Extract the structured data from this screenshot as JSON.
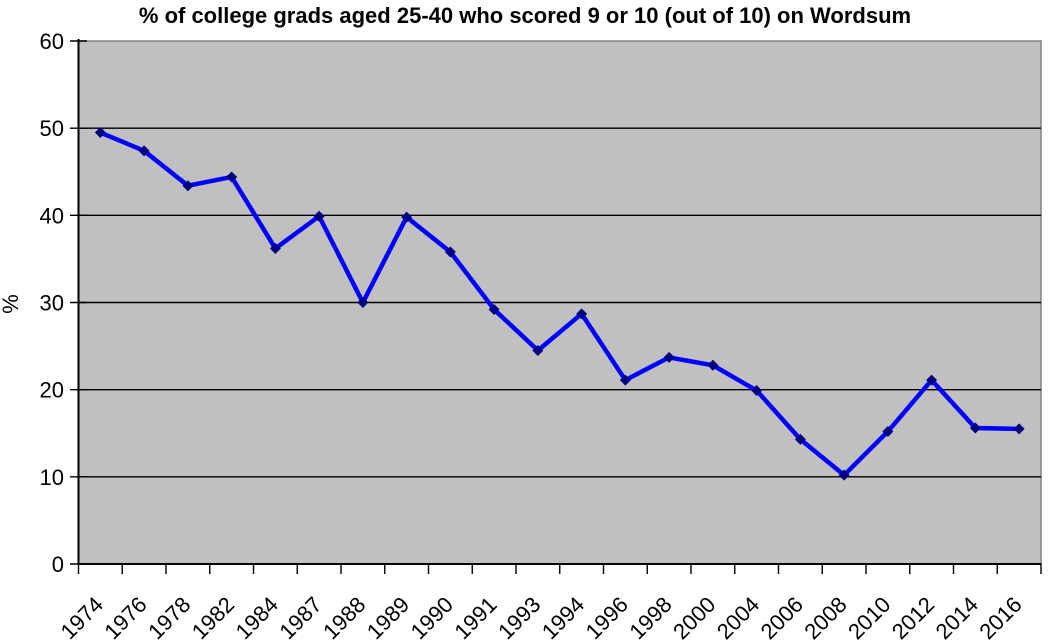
{
  "chart_data": {
    "type": "line",
    "title": "% of college grads aged 25-40 who scored 9 or 10 (out of 10) on Wordsum",
    "xlabel": "",
    "ylabel": "%",
    "categories": [
      "1974",
      "1976",
      "1978",
      "1982",
      "1984",
      "1987",
      "1988",
      "1989",
      "1990",
      "1991",
      "1993",
      "1994",
      "1996",
      "1998",
      "2000",
      "2004",
      "2006",
      "2008",
      "2010",
      "2012",
      "2014",
      "2016"
    ],
    "values": [
      49.5,
      47.4,
      43.4,
      44.4,
      36.2,
      39.9,
      30.0,
      39.8,
      35.8,
      29.2,
      24.5,
      28.7,
      21.1,
      23.7,
      22.8,
      19.9,
      14.3,
      10.2,
      15.2,
      21.1,
      15.6,
      15.5
    ],
    "ylim": [
      0,
      60
    ],
    "yticks": [
      0,
      10,
      20,
      30,
      40,
      50,
      60
    ],
    "grid": true,
    "legend": "none",
    "marker": "diamond",
    "x_tick_rotation_deg": 45,
    "colors": {
      "line": "#0000ff",
      "marker": "#000080",
      "plot_background": "#c0c0c0",
      "plot_border": "#848484",
      "gridline": "#000000",
      "axis": "#000000",
      "text": "#000000",
      "page_background": "#ffffff"
    }
  }
}
